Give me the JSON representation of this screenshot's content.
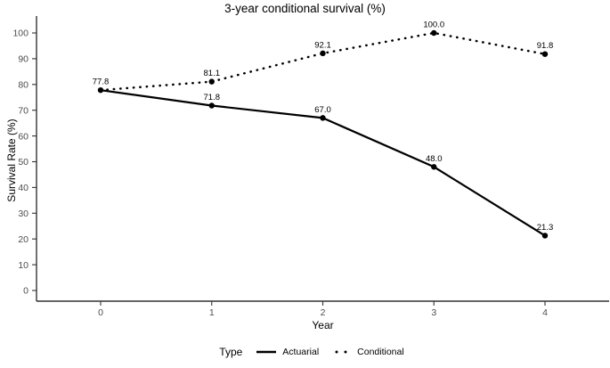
{
  "chart": {
    "title": "3-year conditional survival (%)",
    "xlabel": "Year",
    "ylabel": "Survival Rate (%)"
  },
  "chart_data": {
    "type": "line",
    "title": "3-year conditional survival (%)",
    "xlabel": "Year",
    "ylabel": "Survival Rate (%)",
    "x": [
      0,
      1,
      2,
      3,
      4
    ],
    "series": [
      {
        "name": "Actuarial",
        "style": "solid",
        "values": [
          77.8,
          71.8,
          67.0,
          48.0,
          21.3
        ]
      },
      {
        "name": "Conditional",
        "style": "dotted",
        "values": [
          77.8,
          81.1,
          92.1,
          100.0,
          91.8
        ]
      }
    ],
    "point_labels": {
      "Actuarial": [
        "77.8",
        "71.8",
        "67.0",
        "48.0",
        "21.3"
      ],
      "Conditional": [
        "77.8",
        "81.1",
        "92.1",
        "100.0",
        "91.8"
      ]
    },
    "xticks": [
      0,
      1,
      2,
      3,
      4
    ],
    "yticks": [
      0,
      10,
      20,
      30,
      40,
      50,
      60,
      70,
      80,
      90,
      100
    ],
    "ylim": [
      0,
      100
    ],
    "grid": false,
    "legend_title": "Type",
    "legend_position": "bottom",
    "colors": {
      "line": "#000000",
      "axis": "#333333",
      "tick_text": "#4d4d4d",
      "label_text": "#000000",
      "background": "#ffffff"
    }
  },
  "legend": {
    "title": "Type",
    "items": [
      {
        "label": "Actuarial",
        "style": "solid"
      },
      {
        "label": "Conditional",
        "style": "dotted"
      }
    ]
  }
}
